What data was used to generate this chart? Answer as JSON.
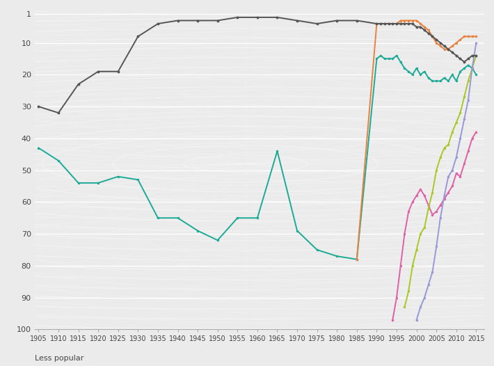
{
  "ylim": [
    100,
    0
  ],
  "xlim": [
    1904,
    2017
  ],
  "yticks": [
    1,
    10,
    20,
    30,
    40,
    50,
    60,
    70,
    80,
    90,
    100
  ],
  "xticks": [
    1905,
    1910,
    1915,
    1920,
    1925,
    1930,
    1935,
    1940,
    1945,
    1950,
    1955,
    1960,
    1965,
    1970,
    1975,
    1980,
    1985,
    1990,
    1995,
    2000,
    2005,
    2010,
    2015
  ],
  "ylabel_bottom": "Less popular",
  "background_color": "#ebebeb",
  "grid_color": "#ffffff",
  "series": {
    "David": {
      "color": "#555555",
      "linewidth": 1.4,
      "markersize": 2.8,
      "data": [
        [
          1905,
          30
        ],
        [
          1910,
          32
        ],
        [
          1915,
          23
        ],
        [
          1920,
          19
        ],
        [
          1925,
          19
        ],
        [
          1930,
          8
        ],
        [
          1935,
          4
        ],
        [
          1940,
          3
        ],
        [
          1945,
          3
        ],
        [
          1950,
          3
        ],
        [
          1955,
          2
        ],
        [
          1960,
          2
        ],
        [
          1965,
          2
        ],
        [
          1970,
          3
        ],
        [
          1975,
          4
        ],
        [
          1980,
          3
        ],
        [
          1985,
          3
        ],
        [
          1990,
          4
        ],
        [
          1991,
          4
        ],
        [
          1992,
          4
        ],
        [
          1993,
          4
        ],
        [
          1994,
          4
        ],
        [
          1995,
          4
        ],
        [
          1996,
          4
        ],
        [
          1997,
          4
        ],
        [
          1998,
          4
        ],
        [
          1999,
          4
        ],
        [
          2000,
          5
        ],
        [
          2001,
          5
        ],
        [
          2002,
          6
        ],
        [
          2003,
          7
        ],
        [
          2004,
          8
        ],
        [
          2005,
          9
        ],
        [
          2006,
          10
        ],
        [
          2007,
          11
        ],
        [
          2008,
          12
        ],
        [
          2009,
          13
        ],
        [
          2010,
          14
        ],
        [
          2011,
          15
        ],
        [
          2012,
          16
        ],
        [
          2013,
          15
        ],
        [
          2014,
          14
        ],
        [
          2015,
          14
        ]
      ]
    },
    "Alexander": {
      "color": "#1aaa96",
      "linewidth": 1.4,
      "markersize": 2.5,
      "data": [
        [
          1905,
          43
        ],
        [
          1910,
          47
        ],
        [
          1915,
          54
        ],
        [
          1920,
          54
        ],
        [
          1925,
          52
        ],
        [
          1930,
          53
        ],
        [
          1935,
          65
        ],
        [
          1940,
          65
        ],
        [
          1945,
          69
        ],
        [
          1950,
          72
        ],
        [
          1955,
          65
        ],
        [
          1960,
          65
        ],
        [
          1965,
          44
        ],
        [
          1970,
          69
        ],
        [
          1975,
          75
        ],
        [
          1980,
          77
        ],
        [
          1985,
          78
        ],
        [
          1990,
          15
        ],
        [
          1991,
          14
        ],
        [
          1992,
          15
        ],
        [
          1993,
          15
        ],
        [
          1994,
          15
        ],
        [
          1995,
          14
        ],
        [
          1996,
          16
        ],
        [
          1997,
          18
        ],
        [
          1998,
          19
        ],
        [
          1999,
          20
        ],
        [
          2000,
          18
        ],
        [
          2001,
          20
        ],
        [
          2002,
          19
        ],
        [
          2003,
          21
        ],
        [
          2004,
          22
        ],
        [
          2005,
          22
        ],
        [
          2006,
          22
        ],
        [
          2007,
          21
        ],
        [
          2008,
          22
        ],
        [
          2009,
          20
        ],
        [
          2010,
          22
        ],
        [
          2011,
          19
        ],
        [
          2012,
          18
        ],
        [
          2013,
          17
        ],
        [
          2014,
          18
        ],
        [
          2015,
          20
        ]
      ]
    },
    "Joshua": {
      "color": "#e8813e",
      "linewidth": 1.4,
      "markersize": 2.5,
      "data": [
        [
          1985,
          78
        ],
        [
          1990,
          4
        ],
        [
          1991,
          4
        ],
        [
          1992,
          4
        ],
        [
          1993,
          4
        ],
        [
          1994,
          4
        ],
        [
          1995,
          4
        ],
        [
          1996,
          3
        ],
        [
          1997,
          3
        ],
        [
          1998,
          3
        ],
        [
          1999,
          3
        ],
        [
          2000,
          3
        ],
        [
          2001,
          4
        ],
        [
          2002,
          5
        ],
        [
          2003,
          6
        ],
        [
          2004,
          8
        ],
        [
          2005,
          10
        ],
        [
          2006,
          11
        ],
        [
          2007,
          12
        ],
        [
          2008,
          12
        ],
        [
          2009,
          11
        ],
        [
          2010,
          10
        ],
        [
          2011,
          9
        ],
        [
          2012,
          8
        ],
        [
          2013,
          8
        ],
        [
          2014,
          8
        ],
        [
          2015,
          8
        ]
      ]
    },
    "Muhammad": {
      "color": "#e060a5",
      "linewidth": 1.4,
      "markersize": 2.5,
      "data": [
        [
          1994,
          97
        ],
        [
          1995,
          90
        ],
        [
          1996,
          80
        ],
        [
          1997,
          70
        ],
        [
          1998,
          63
        ],
        [
          1999,
          60
        ],
        [
          2000,
          58
        ],
        [
          2001,
          56
        ],
        [
          2002,
          58
        ],
        [
          2003,
          61
        ],
        [
          2004,
          64
        ],
        [
          2005,
          63
        ],
        [
          2006,
          61
        ],
        [
          2007,
          59
        ],
        [
          2008,
          57
        ],
        [
          2009,
          55
        ],
        [
          2010,
          51
        ],
        [
          2011,
          52
        ],
        [
          2012,
          48
        ],
        [
          2013,
          44
        ],
        [
          2014,
          40
        ],
        [
          2015,
          38
        ]
      ]
    },
    "Leo": {
      "color": "#a8c828",
      "linewidth": 1.4,
      "markersize": 2.5,
      "data": [
        [
          1997,
          93
        ],
        [
          1998,
          88
        ],
        [
          1999,
          80
        ],
        [
          2000,
          75
        ],
        [
          2001,
          70
        ],
        [
          2002,
          68
        ],
        [
          2003,
          62
        ],
        [
          2004,
          57
        ],
        [
          2005,
          50
        ],
        [
          2006,
          46
        ],
        [
          2007,
          43
        ],
        [
          2008,
          42
        ],
        [
          2009,
          38
        ],
        [
          2010,
          35
        ],
        [
          2011,
          32
        ],
        [
          2012,
          27
        ],
        [
          2013,
          22
        ],
        [
          2014,
          18
        ],
        [
          2015,
          14
        ]
      ]
    },
    "Noah": {
      "color": "#9898d8",
      "linewidth": 1.4,
      "markersize": 2.5,
      "data": [
        [
          2000,
          97
        ],
        [
          2001,
          93
        ],
        [
          2002,
          90
        ],
        [
          2003,
          86
        ],
        [
          2004,
          82
        ],
        [
          2005,
          74
        ],
        [
          2006,
          65
        ],
        [
          2007,
          58
        ],
        [
          2008,
          52
        ],
        [
          2009,
          50
        ],
        [
          2010,
          46
        ],
        [
          2011,
          40
        ],
        [
          2012,
          34
        ],
        [
          2013,
          28
        ],
        [
          2014,
          18
        ],
        [
          2015,
          10
        ]
      ]
    }
  }
}
